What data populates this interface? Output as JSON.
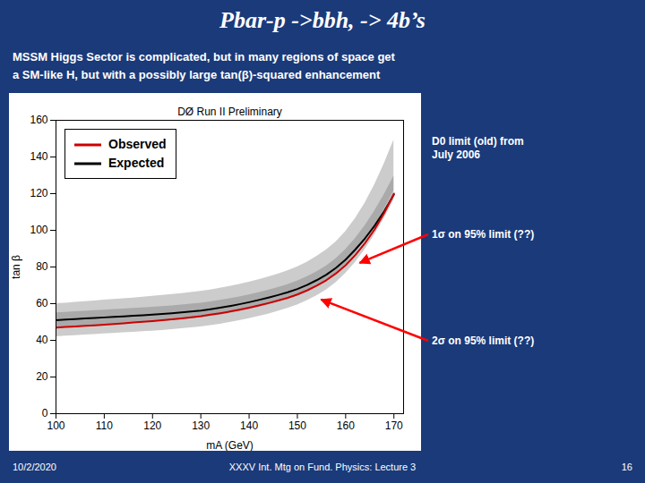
{
  "chart_data": {
    "type": "line",
    "title": "Pbar-p ->bbh, -> 4b’s",
    "subtitle": [
      "MSSM Higgs Sector is complicated, but in many regions of space get",
      "a SM-like H, but with a possibly large tan(β)-squared enhancement"
    ],
    "plot_title": "DØ Run II Preliminary",
    "xlabel": "mA (GeV)",
    "ylabel": "tan β",
    "xlim": [
      100,
      172
    ],
    "ylim": [
      0,
      160
    ],
    "xticks": [
      100,
      110,
      120,
      130,
      140,
      150,
      160,
      170
    ],
    "yticks": [
      0,
      20,
      40,
      60,
      80,
      100,
      120,
      140,
      160
    ],
    "grid": false,
    "legend": "upper left",
    "x": [
      100,
      102,
      104,
      106,
      108,
      110,
      112,
      114,
      116,
      118,
      120,
      122,
      124,
      126,
      128,
      130,
      132,
      134,
      136,
      138,
      140,
      142,
      144,
      146,
      148,
      150,
      152,
      154,
      156,
      158,
      160,
      162,
      164,
      166,
      168,
      170
    ],
    "series": [
      {
        "name": "Observed",
        "color": "#cc0000",
        "values": [
          47,
          47.3,
          47.6,
          47.9,
          48.2,
          48.5,
          48.9,
          49.3,
          49.7,
          50.1,
          50.5,
          51.0,
          51.5,
          52.0,
          52.6,
          53.2,
          54.0,
          54.8,
          55.7,
          56.7,
          57.8,
          59.0,
          60.3,
          61.7,
          63.2,
          65.0,
          67.2,
          69.8,
          72.8,
          76.5,
          81.0,
          86.5,
          93.0,
          100.5,
          109.5,
          120.0
        ]
      },
      {
        "name": "Expected",
        "color": "#000000",
        "values": [
          51,
          51.3,
          51.6,
          51.9,
          52.2,
          52.5,
          52.8,
          53.1,
          53.4,
          53.7,
          54.0,
          54.4,
          54.8,
          55.2,
          55.7,
          56.2,
          57.0,
          57.8,
          58.7,
          59.7,
          60.8,
          62.0,
          63.3,
          64.7,
          66.2,
          68.0,
          70.2,
          72.8,
          75.8,
          79.5,
          84.0,
          89.5,
          95.5,
          102.5,
          110.5,
          119.5
        ]
      }
    ],
    "bands": [
      {
        "color": "#cccccc",
        "lower": [
          42,
          42.3,
          42.6,
          42.9,
          43.2,
          43.5,
          43.8,
          44.1,
          44.4,
          44.7,
          45.0,
          45.4,
          45.8,
          46.3,
          46.8,
          47.3,
          48.0,
          48.8,
          49.7,
          50.7,
          51.8,
          53.0,
          54.3,
          55.8,
          57.4,
          59.3,
          61.6,
          64.3,
          67.5,
          71.5,
          76.5,
          82.5,
          89.5,
          97.5,
          106.5,
          116.5
        ],
        "upper": [
          60,
          60.3,
          60.7,
          61.1,
          61.5,
          61.9,
          62.3,
          62.7,
          63.1,
          63.5,
          64.0,
          64.5,
          65.0,
          65.5,
          66.1,
          66.7,
          67.5,
          68.4,
          69.4,
          70.5,
          71.7,
          73.0,
          74.5,
          76.1,
          77.9,
          80.0,
          82.6,
          85.7,
          89.3,
          93.7,
          99.3,
          106.3,
          114.8,
          124.8,
          136.3,
          149.3
        ]
      },
      {
        "color": "#aaaaaa",
        "lower": [
          47,
          47.3,
          47.6,
          47.9,
          48.2,
          48.5,
          48.8,
          49.1,
          49.4,
          49.7,
          50.0,
          50.4,
          50.8,
          51.3,
          51.8,
          52.3,
          53.0,
          53.8,
          54.7,
          55.7,
          56.8,
          58.0,
          59.3,
          60.8,
          62.4,
          64.3,
          66.6,
          69.3,
          72.5,
          76.5,
          81.5,
          87.5,
          94.5,
          102.5,
          111.5,
          121.5
        ],
        "upper": [
          55,
          55.3,
          55.6,
          55.9,
          56.2,
          56.5,
          56.8,
          57.1,
          57.4,
          57.7,
          58.0,
          58.4,
          58.8,
          59.3,
          59.8,
          60.3,
          61.0,
          61.8,
          62.7,
          63.7,
          64.8,
          66.0,
          67.3,
          68.8,
          70.4,
          72.3,
          74.6,
          77.3,
          80.5,
          84.5,
          89.5,
          95.5,
          102.5,
          110.5,
          119.5,
          129.5
        ]
      }
    ],
    "annotations": [
      {
        "text": "D0 limit (old) from\nJuly 2006"
      },
      {
        "text": "1σ on 95% limit (??)",
        "x": 163,
        "y": 82
      },
      {
        "text": "2σ on 95% limit (??)",
        "x": 155,
        "y": 62
      }
    ],
    "footer": [
      "10/2/2020",
      "XXXV Int. Mtg on Fund. Physics: Lecture 3",
      "16"
    ]
  }
}
